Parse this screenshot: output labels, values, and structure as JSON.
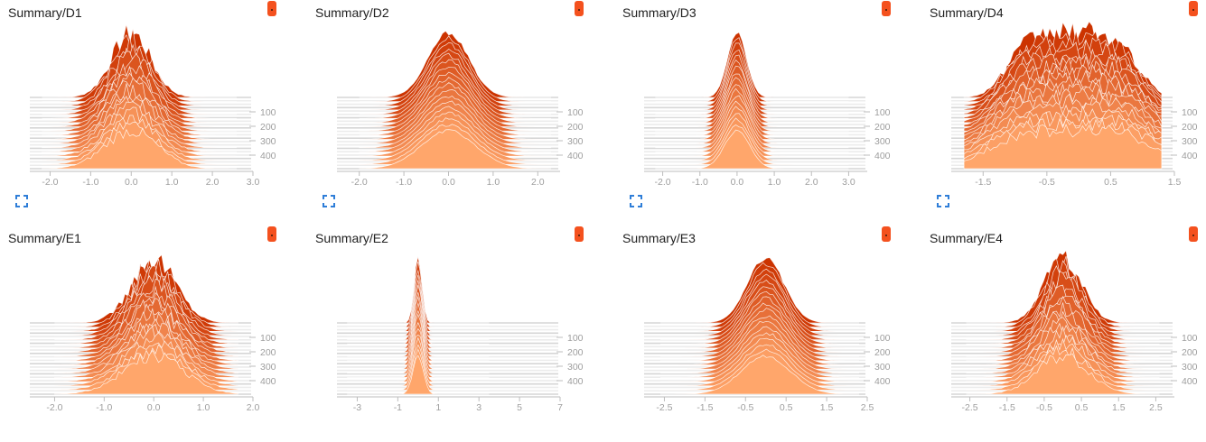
{
  "panels": [
    {
      "title": "Summary/D1",
      "x_ticks": [
        "-2.0",
        "-1.0",
        "0.0",
        "1.0",
        "2.0",
        "3.0"
      ],
      "y_ticks": [
        "100",
        "200",
        "300",
        "400"
      ]
    },
    {
      "title": "Summary/D2",
      "x_ticks": [
        "-2.0",
        "-1.0",
        "0.0",
        "1.0",
        "2.0"
      ],
      "y_ticks": [
        "100",
        "200",
        "300",
        "400"
      ]
    },
    {
      "title": "Summary/D3",
      "x_ticks": [
        "-2.0",
        "-1.0",
        "0.0",
        "1.0",
        "2.0",
        "3.0"
      ],
      "y_ticks": [
        "100",
        "200",
        "300",
        "400"
      ]
    },
    {
      "title": "Summary/D4",
      "x_ticks": [
        "-1.5",
        "-0.5",
        "0.5",
        "1.5"
      ],
      "y_ticks": [
        "100",
        "200",
        "300",
        "400"
      ]
    },
    {
      "title": "Summary/E1",
      "x_ticks": [
        "-2.0",
        "-1.0",
        "0.0",
        "1.0",
        "2.0"
      ],
      "y_ticks": [
        "100",
        "200",
        "300",
        "400"
      ]
    },
    {
      "title": "Summary/E2",
      "x_ticks": [
        "-3",
        "-1",
        "1",
        "3",
        "5",
        "7"
      ],
      "y_ticks": [
        "100",
        "200",
        "300",
        "400"
      ]
    },
    {
      "title": "Summary/E3",
      "x_ticks": [
        "-2.5",
        "-1.5",
        "-0.5",
        "0.5",
        "1.5",
        "2.5"
      ],
      "y_ticks": [
        "100",
        "200",
        "300",
        "400"
      ]
    },
    {
      "title": "Summary/E4",
      "x_ticks": [
        "-2.5",
        "-1.5",
        "-0.5",
        "0.5",
        "1.5",
        "2.5"
      ],
      "y_ticks": [
        "100",
        "200",
        "300",
        "400"
      ]
    }
  ],
  "chart_data": [
    {
      "type": "area",
      "title": "Summary/D1",
      "xlim": [
        -2.5,
        3.0
      ],
      "ylim": [
        500,
        0
      ],
      "step_ticks": [
        100,
        200,
        300,
        400
      ],
      "center": 0.0,
      "spread": 0.8,
      "xmin": -2.2,
      "xmax": 2.6,
      "profile": "spiky"
    },
    {
      "type": "area",
      "title": "Summary/D2",
      "xlim": [
        -2.5,
        2.5
      ],
      "ylim": [
        500,
        0
      ],
      "step_ticks": [
        100,
        200,
        300,
        400
      ],
      "center": 0.0,
      "spread": 0.75,
      "xmin": -2.0,
      "xmax": 2.3,
      "profile": "smooth"
    },
    {
      "type": "area",
      "title": "Summary/D3",
      "xlim": [
        -2.5,
        3.5
      ],
      "ylim": [
        500,
        0
      ],
      "step_ticks": [
        100,
        200,
        300,
        400
      ],
      "center": 0.0,
      "spread": 0.6,
      "xmin": -2.2,
      "xmax": 3.0,
      "profile": "narrow"
    },
    {
      "type": "area",
      "title": "Summary/D4",
      "xlim": [
        -2.0,
        1.5
      ],
      "ylim": [
        500,
        0
      ],
      "step_ticks": [
        100,
        200,
        300,
        400
      ],
      "center": -0.1,
      "spread": 1.3,
      "xmin": -1.8,
      "xmax": 1.3,
      "profile": "plateau"
    },
    {
      "type": "area",
      "title": "Summary/E1",
      "xlim": [
        -2.5,
        2.0
      ],
      "ylim": [
        500,
        0
      ],
      "step_ticks": [
        100,
        200,
        300,
        400
      ],
      "center": 0.0,
      "spread": 0.75,
      "xmin": -2.0,
      "xmax": 1.7,
      "profile": "spiky"
    },
    {
      "type": "area",
      "title": "Summary/E2",
      "xlim": [
        -4.0,
        7.0
      ],
      "ylim": [
        500,
        0
      ],
      "step_ticks": [
        100,
        200,
        300,
        400
      ],
      "center": 0.0,
      "spread": 0.45,
      "xmin": -3.5,
      "xmax": 3.5,
      "profile": "narrow"
    },
    {
      "type": "area",
      "title": "Summary/E3",
      "xlim": [
        -3.0,
        2.5
      ],
      "ylim": [
        500,
        0
      ],
      "step_ticks": [
        100,
        200,
        300,
        400
      ],
      "center": 0.0,
      "spread": 0.75,
      "xmin": -2.6,
      "xmax": 2.3,
      "profile": "smooth"
    },
    {
      "type": "area",
      "title": "Summary/E4",
      "xlim": [
        -3.0,
        3.0
      ],
      "ylim": [
        500,
        0
      ],
      "step_ticks": [
        100,
        200,
        300,
        400
      ],
      "center": 0.0,
      "spread": 0.85,
      "xmin": -2.6,
      "xmax": 2.6,
      "profile": "spiky"
    }
  ],
  "colors": {
    "back": "#cc3300",
    "front": "#ffa66b",
    "badge": "#f4511e",
    "expand": "#2f7ed8",
    "axis": "#bdbdbd"
  }
}
